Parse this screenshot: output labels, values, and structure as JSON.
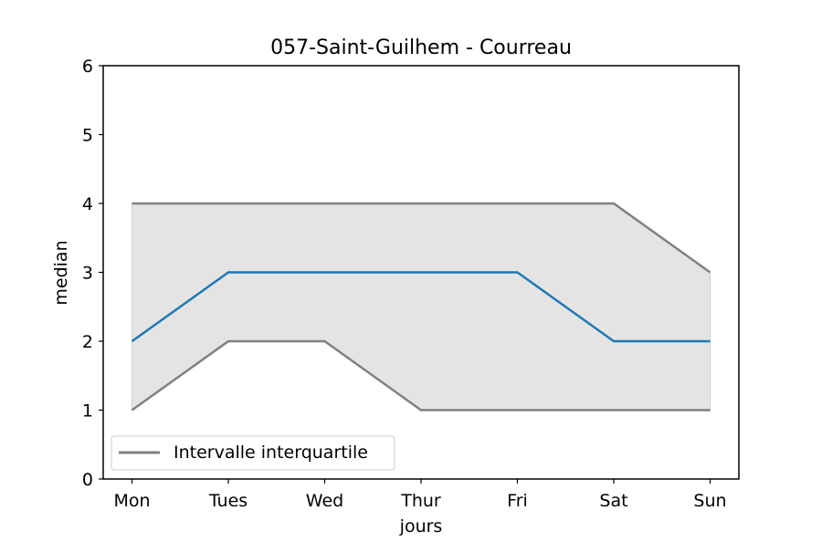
{
  "chart_data": {
    "type": "line",
    "title": "057-Saint-Guilhem - Courreau",
    "xlabel": "jours",
    "ylabel": "median",
    "categories": [
      "Mon",
      "Tues",
      "Wed",
      "Thur",
      "Fri",
      "Sat",
      "Sun"
    ],
    "ylim": [
      0,
      6
    ],
    "yticks": [
      "0",
      "1",
      "2",
      "3",
      "4",
      "5",
      "6"
    ],
    "series": [
      {
        "values": [
          2,
          3,
          3,
          3,
          3,
          2,
          2
        ],
        "color": "#1f77b4"
      }
    ],
    "interval": {
      "name": "Intervalle interquartile",
      "lower": [
        1,
        2,
        2,
        1,
        1,
        1,
        1
      ],
      "upper": [
        4,
        4,
        4,
        4,
        4,
        4,
        3
      ],
      "line_color": "#808080",
      "fill_color": "#e4e4e4"
    },
    "legend_placement": "lower-left",
    "grid": false
  }
}
